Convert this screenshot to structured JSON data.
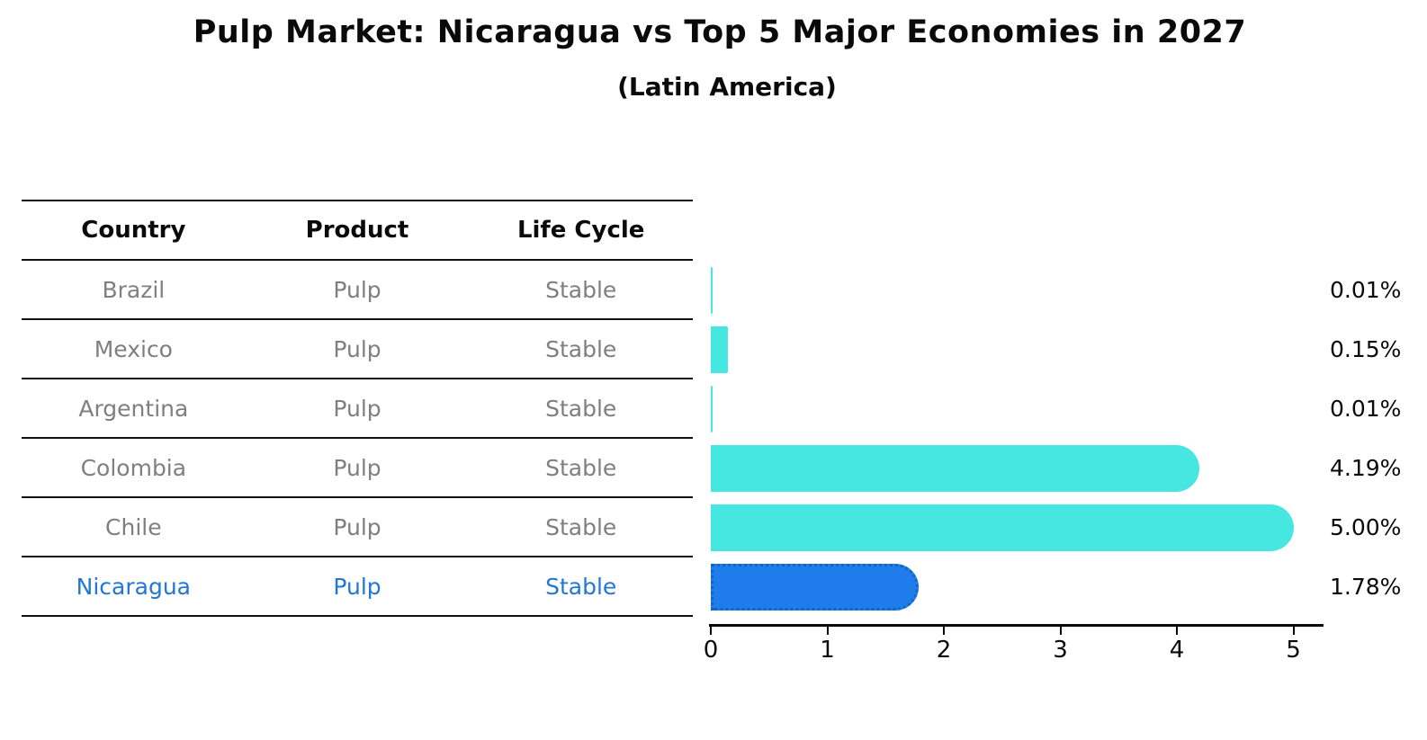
{
  "title": "Pulp Market: Nicaragua vs Top 5 Major Economies in 2027",
  "subtitle": "(Latin America)",
  "table": {
    "headers": [
      "Country",
      "Product",
      "Life Cycle"
    ],
    "rows": [
      {
        "country": "Brazil",
        "product": "Pulp",
        "life_cycle": "Stable",
        "highlight": false
      },
      {
        "country": "Mexico",
        "product": "Pulp",
        "life_cycle": "Stable",
        "highlight": false
      },
      {
        "country": "Argentina",
        "product": "Pulp",
        "life_cycle": "Stable",
        "highlight": false
      },
      {
        "country": "Colombia",
        "product": "Pulp",
        "life_cycle": "Stable",
        "highlight": false
      },
      {
        "country": "Chile",
        "product": "Pulp",
        "life_cycle": "Stable",
        "highlight": false
      },
      {
        "country": "Nicaragua",
        "product": "Pulp",
        "life_cycle": "Stable",
        "highlight": true
      }
    ]
  },
  "chart_data": {
    "type": "bar",
    "orientation": "horizontal",
    "title": "Pulp Market: Nicaragua vs Top 5 Major Economies in 2027",
    "subtitle": "(Latin America)",
    "categories": [
      "Brazil",
      "Mexico",
      "Argentina",
      "Colombia",
      "Chile",
      "Nicaragua"
    ],
    "values": [
      0.01,
      0.15,
      0.01,
      4.19,
      5.0,
      1.78
    ],
    "value_labels": [
      "0.01%",
      "0.15%",
      "0.01%",
      "4.19%",
      "5.00%",
      "1.78%"
    ],
    "x_ticks": [
      "0",
      "1",
      "2",
      "3",
      "4",
      "5"
    ],
    "xlim": [
      0,
      5.25
    ],
    "grid": false,
    "legend": false,
    "bar_color": "#46e6e1",
    "highlight_bar_color": "#1e7deb",
    "highlight_border_color": "#1464c8",
    "highlight_index": 5,
    "highlight_text_color": "#2277d4",
    "text_color_muted": "#7f7f7f"
  }
}
